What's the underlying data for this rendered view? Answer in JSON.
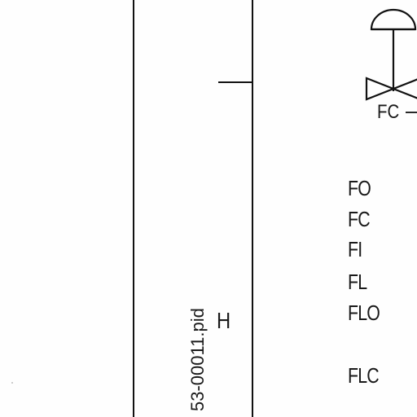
{
  "valve": {
    "label": "FC"
  },
  "legend": {
    "codes": [
      "FO",
      "FC",
      "FI",
      "FL",
      "FLO",
      "FLC"
    ]
  },
  "title_block": {
    "filename": "53-00011.pid",
    "revision": "H"
  },
  "colors": {
    "ink": "#111111",
    "paper": "#fefefe"
  }
}
